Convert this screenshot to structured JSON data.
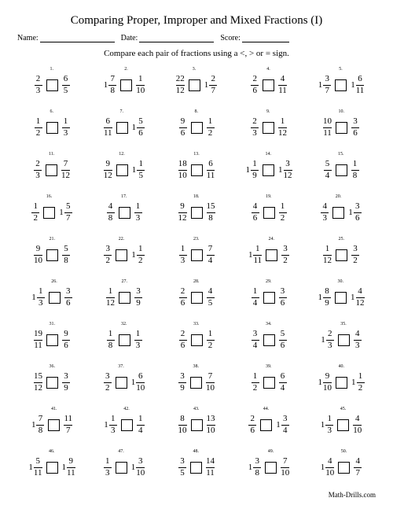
{
  "title": "Comparing Proper, Improper and Mixed Fractions (I)",
  "name_label": "Name:",
  "date_label": "Date:",
  "score_label": "Score:",
  "instructions": "Compare each pair of fractions using a <, > or = sign.",
  "footer": "Math-Drills.com",
  "problems": [
    {
      "n": "1.",
      "l": {
        "w": "",
        "num": "2",
        "den": "3"
      },
      "r": {
        "w": "",
        "num": "6",
        "den": "5"
      }
    },
    {
      "n": "2.",
      "l": {
        "w": "1",
        "num": "7",
        "den": "8"
      },
      "r": {
        "w": "",
        "num": "1",
        "den": "10"
      }
    },
    {
      "n": "3.",
      "l": {
        "w": "",
        "num": "22",
        "den": "12"
      },
      "r": {
        "w": "1",
        "num": "2",
        "den": "7"
      }
    },
    {
      "n": "4.",
      "l": {
        "w": "",
        "num": "2",
        "den": "6"
      },
      "r": {
        "w": "",
        "num": "4",
        "den": "11"
      }
    },
    {
      "n": "5.",
      "l": {
        "w": "1",
        "num": "3",
        "den": "7"
      },
      "r": {
        "w": "1",
        "num": "6",
        "den": "11"
      }
    },
    {
      "n": "6.",
      "l": {
        "w": "",
        "num": "1",
        "den": "2"
      },
      "r": {
        "w": "",
        "num": "1",
        "den": "3"
      }
    },
    {
      "n": "7.",
      "l": {
        "w": "",
        "num": "6",
        "den": "11"
      },
      "r": {
        "w": "1",
        "num": "5",
        "den": "6"
      }
    },
    {
      "n": "8.",
      "l": {
        "w": "",
        "num": "9",
        "den": "6"
      },
      "r": {
        "w": "",
        "num": "1",
        "den": "2"
      }
    },
    {
      "n": "9.",
      "l": {
        "w": "",
        "num": "2",
        "den": "3"
      },
      "r": {
        "w": "",
        "num": "1",
        "den": "12"
      }
    },
    {
      "n": "10.",
      "l": {
        "w": "",
        "num": "10",
        "den": "11"
      },
      "r": {
        "w": "",
        "num": "3",
        "den": "6"
      }
    },
    {
      "n": "11.",
      "l": {
        "w": "",
        "num": "2",
        "den": "3"
      },
      "r": {
        "w": "",
        "num": "7",
        "den": "12"
      }
    },
    {
      "n": "12.",
      "l": {
        "w": "",
        "num": "9",
        "den": "12"
      },
      "r": {
        "w": "1",
        "num": "1",
        "den": "5"
      }
    },
    {
      "n": "13.",
      "l": {
        "w": "",
        "num": "18",
        "den": "10"
      },
      "r": {
        "w": "",
        "num": "6",
        "den": "11"
      }
    },
    {
      "n": "14.",
      "l": {
        "w": "1",
        "num": "1",
        "den": "9"
      },
      "r": {
        "w": "1",
        "num": "3",
        "den": "12"
      }
    },
    {
      "n": "15.",
      "l": {
        "w": "",
        "num": "5",
        "den": "4"
      },
      "r": {
        "w": "",
        "num": "1",
        "den": "8"
      }
    },
    {
      "n": "16.",
      "l": {
        "w": "",
        "num": "1",
        "den": "2"
      },
      "r": {
        "w": "1",
        "num": "5",
        "den": "7"
      }
    },
    {
      "n": "17.",
      "l": {
        "w": "",
        "num": "4",
        "den": "8"
      },
      "r": {
        "w": "",
        "num": "1",
        "den": "3"
      }
    },
    {
      "n": "18.",
      "l": {
        "w": "",
        "num": "9",
        "den": "12"
      },
      "r": {
        "w": "",
        "num": "15",
        "den": "8"
      }
    },
    {
      "n": "19.",
      "l": {
        "w": "",
        "num": "4",
        "den": "6"
      },
      "r": {
        "w": "",
        "num": "1",
        "den": "2"
      }
    },
    {
      "n": "20.",
      "l": {
        "w": "",
        "num": "4",
        "den": "3"
      },
      "r": {
        "w": "1",
        "num": "3",
        "den": "6"
      }
    },
    {
      "n": "21.",
      "l": {
        "w": "",
        "num": "9",
        "den": "10"
      },
      "r": {
        "w": "",
        "num": "5",
        "den": "8"
      }
    },
    {
      "n": "22.",
      "l": {
        "w": "",
        "num": "3",
        "den": "2"
      },
      "r": {
        "w": "1",
        "num": "1",
        "den": "2"
      }
    },
    {
      "n": "23.",
      "l": {
        "w": "",
        "num": "1",
        "den": "3"
      },
      "r": {
        "w": "",
        "num": "7",
        "den": "4"
      }
    },
    {
      "n": "24.",
      "l": {
        "w": "1",
        "num": "1",
        "den": "11"
      },
      "r": {
        "w": "",
        "num": "3",
        "den": "2"
      }
    },
    {
      "n": "25.",
      "l": {
        "w": "",
        "num": "1",
        "den": "12"
      },
      "r": {
        "w": "",
        "num": "3",
        "den": "2"
      }
    },
    {
      "n": "26.",
      "l": {
        "w": "1",
        "num": "1",
        "den": "3"
      },
      "r": {
        "w": "",
        "num": "3",
        "den": "6"
      }
    },
    {
      "n": "27.",
      "l": {
        "w": "",
        "num": "1",
        "den": "12"
      },
      "r": {
        "w": "",
        "num": "3",
        "den": "9"
      }
    },
    {
      "n": "28.",
      "l": {
        "w": "",
        "num": "2",
        "den": "6"
      },
      "r": {
        "w": "",
        "num": "4",
        "den": "5"
      }
    },
    {
      "n": "29.",
      "l": {
        "w": "",
        "num": "1",
        "den": "4"
      },
      "r": {
        "w": "",
        "num": "3",
        "den": "6"
      }
    },
    {
      "n": "30.",
      "l": {
        "w": "1",
        "num": "8",
        "den": "9"
      },
      "r": {
        "w": "1",
        "num": "4",
        "den": "12"
      }
    },
    {
      "n": "31.",
      "l": {
        "w": "",
        "num": "19",
        "den": "11"
      },
      "r": {
        "w": "",
        "num": "9",
        "den": "6"
      }
    },
    {
      "n": "32.",
      "l": {
        "w": "",
        "num": "1",
        "den": "8"
      },
      "r": {
        "w": "",
        "num": "1",
        "den": "3"
      }
    },
    {
      "n": "33.",
      "l": {
        "w": "",
        "num": "2",
        "den": "6"
      },
      "r": {
        "w": "",
        "num": "1",
        "den": "2"
      }
    },
    {
      "n": "34.",
      "l": {
        "w": "",
        "num": "3",
        "den": "4"
      },
      "r": {
        "w": "",
        "num": "5",
        "den": "6"
      }
    },
    {
      "n": "35.",
      "l": {
        "w": "1",
        "num": "2",
        "den": "3"
      },
      "r": {
        "w": "",
        "num": "4",
        "den": "3"
      }
    },
    {
      "n": "36.",
      "l": {
        "w": "",
        "num": "15",
        "den": "12"
      },
      "r": {
        "w": "",
        "num": "3",
        "den": "9"
      }
    },
    {
      "n": "37.",
      "l": {
        "w": "",
        "num": "3",
        "den": "2"
      },
      "r": {
        "w": "1",
        "num": "6",
        "den": "10"
      }
    },
    {
      "n": "38.",
      "l": {
        "w": "",
        "num": "3",
        "den": "9"
      },
      "r": {
        "w": "",
        "num": "7",
        "den": "10"
      }
    },
    {
      "n": "39.",
      "l": {
        "w": "",
        "num": "1",
        "den": "2"
      },
      "r": {
        "w": "",
        "num": "6",
        "den": "4"
      }
    },
    {
      "n": "40.",
      "l": {
        "w": "1",
        "num": "9",
        "den": "10"
      },
      "r": {
        "w": "1",
        "num": "1",
        "den": "2"
      }
    },
    {
      "n": "41.",
      "l": {
        "w": "1",
        "num": "7",
        "den": "8"
      },
      "r": {
        "w": "",
        "num": "11",
        "den": "7"
      }
    },
    {
      "n": "42.",
      "l": {
        "w": "1",
        "num": "1",
        "den": "3"
      },
      "r": {
        "w": "",
        "num": "1",
        "den": "4"
      }
    },
    {
      "n": "43.",
      "l": {
        "w": "",
        "num": "8",
        "den": "10"
      },
      "r": {
        "w": "",
        "num": "13",
        "den": "10"
      }
    },
    {
      "n": "44.",
      "l": {
        "w": "",
        "num": "2",
        "den": "6"
      },
      "r": {
        "w": "1",
        "num": "3",
        "den": "4"
      }
    },
    {
      "n": "45.",
      "l": {
        "w": "1",
        "num": "1",
        "den": "3"
      },
      "r": {
        "w": "",
        "num": "4",
        "den": "10"
      }
    },
    {
      "n": "46.",
      "l": {
        "w": "1",
        "num": "5",
        "den": "11"
      },
      "r": {
        "w": "1",
        "num": "9",
        "den": "11"
      }
    },
    {
      "n": "47.",
      "l": {
        "w": "",
        "num": "1",
        "den": "3"
      },
      "r": {
        "w": "1",
        "num": "3",
        "den": "10"
      }
    },
    {
      "n": "48.",
      "l": {
        "w": "",
        "num": "3",
        "den": "5"
      },
      "r": {
        "w": "",
        "num": "14",
        "den": "11"
      }
    },
    {
      "n": "49.",
      "l": {
        "w": "1",
        "num": "3",
        "den": "8"
      },
      "r": {
        "w": "",
        "num": "7",
        "den": "10"
      }
    },
    {
      "n": "50.",
      "l": {
        "w": "1",
        "num": "4",
        "den": "10"
      },
      "r": {
        "w": "",
        "num": "4",
        "den": "7"
      }
    }
  ]
}
